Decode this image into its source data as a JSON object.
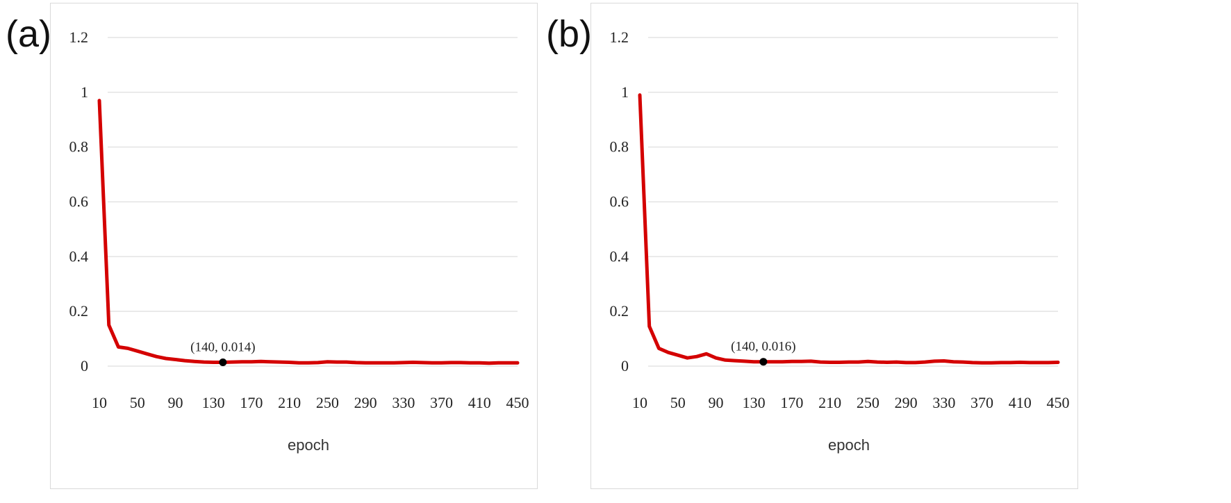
{
  "panels": [
    {
      "label": "(a)"
    },
    {
      "label": "(b)"
    }
  ],
  "chart_data": [
    {
      "type": "line",
      "title": "",
      "xlabel": "epoch",
      "ylabel": "",
      "ylim": [
        0,
        1.2
      ],
      "yticks": [
        "0",
        "0.2",
        "0.4",
        "0.6",
        "0.8",
        "1",
        "1.2"
      ],
      "xticks": [
        "10",
        "50",
        "90",
        "130",
        "170",
        "210",
        "250",
        "290",
        "330",
        "370",
        "410",
        "450"
      ],
      "grid": true,
      "color": "#d40000",
      "x": [
        10,
        20,
        30,
        40,
        50,
        60,
        70,
        80,
        90,
        100,
        110,
        120,
        130,
        140,
        150,
        160,
        170,
        180,
        190,
        200,
        210,
        220,
        230,
        240,
        250,
        260,
        270,
        280,
        290,
        300,
        310,
        320,
        330,
        340,
        350,
        360,
        370,
        380,
        390,
        400,
        410,
        420,
        430,
        440,
        450
      ],
      "values": [
        0.97,
        0.15,
        0.07,
        0.065,
        0.055,
        0.045,
        0.035,
        0.028,
        0.024,
        0.02,
        0.017,
        0.015,
        0.014,
        0.014,
        0.015,
        0.016,
        0.016,
        0.017,
        0.016,
        0.015,
        0.014,
        0.012,
        0.012,
        0.013,
        0.016,
        0.015,
        0.015,
        0.013,
        0.012,
        0.012,
        0.012,
        0.012,
        0.013,
        0.014,
        0.013,
        0.012,
        0.012,
        0.013,
        0.013,
        0.012,
        0.012,
        0.011,
        0.012,
        0.012,
        0.012
      ],
      "marker": {
        "x": 140,
        "y": 0.014,
        "label": "(140, 0.014)"
      }
    },
    {
      "type": "line",
      "title": "",
      "xlabel": "epoch",
      "ylabel": "",
      "ylim": [
        0,
        1.2
      ],
      "yticks": [
        "0",
        "0.2",
        "0.4",
        "0.6",
        "0.8",
        "1",
        "1.2"
      ],
      "xticks": [
        "10",
        "50",
        "90",
        "130",
        "170",
        "210",
        "250",
        "290",
        "330",
        "370",
        "410",
        "450"
      ],
      "grid": true,
      "color": "#d40000",
      "x": [
        10,
        20,
        30,
        40,
        50,
        60,
        70,
        80,
        90,
        100,
        110,
        120,
        130,
        140,
        150,
        160,
        170,
        180,
        190,
        200,
        210,
        220,
        230,
        240,
        250,
        260,
        270,
        280,
        290,
        300,
        310,
        320,
        330,
        340,
        350,
        360,
        370,
        380,
        390,
        400,
        410,
        420,
        430,
        440,
        450
      ],
      "values": [
        0.99,
        0.145,
        0.065,
        0.05,
        0.04,
        0.03,
        0.035,
        0.045,
        0.03,
        0.022,
        0.02,
        0.018,
        0.016,
        0.016,
        0.016,
        0.016,
        0.017,
        0.017,
        0.018,
        0.015,
        0.014,
        0.014,
        0.015,
        0.015,
        0.017,
        0.015,
        0.014,
        0.015,
        0.013,
        0.013,
        0.015,
        0.018,
        0.019,
        0.016,
        0.015,
        0.013,
        0.012,
        0.012,
        0.013,
        0.013,
        0.014,
        0.013,
        0.013,
        0.013,
        0.014
      ],
      "marker": {
        "x": 140,
        "y": 0.016,
        "label": "(140, 0.016)"
      }
    }
  ]
}
